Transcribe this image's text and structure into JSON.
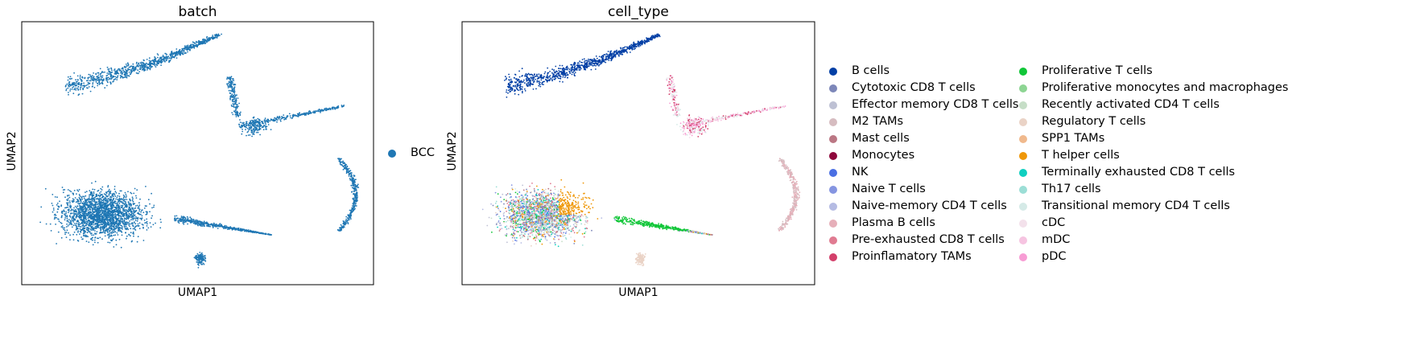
{
  "chart_data": [
    {
      "type": "scatter",
      "title": "batch",
      "xlabel": "UMAP1",
      "ylabel": "UMAP2",
      "legend_placement": "right",
      "series": [
        {
          "name": "BCC",
          "color": "#1f77b4"
        }
      ]
    },
    {
      "type": "scatter",
      "title": "cell_type",
      "xlabel": "UMAP1",
      "ylabel": "UMAP2",
      "legend_placement": "right",
      "legend_columns": 2,
      "series": [
        {
          "name": "B cells",
          "color": "#023fa5"
        },
        {
          "name": "Cytotoxic CD8 T cells",
          "color": "#7d87b9"
        },
        {
          "name": "Effector memory CD8 T cells",
          "color": "#bec1d4"
        },
        {
          "name": "M2 TAMs",
          "color": "#d6bcc0"
        },
        {
          "name": "Mast cells",
          "color": "#bb7784"
        },
        {
          "name": "Monocytes",
          "color": "#8e063b"
        },
        {
          "name": "NK",
          "color": "#4a6fe3"
        },
        {
          "name": "Naive T cells",
          "color": "#8595e1"
        },
        {
          "name": "Naive-memory CD4 T cells",
          "color": "#b5bbe3"
        },
        {
          "name": "Plasma B cells",
          "color": "#e6afb9"
        },
        {
          "name": "Pre-exhausted CD8 T cells",
          "color": "#e07b91"
        },
        {
          "name": "Proinflamatory TAMs",
          "color": "#d33f6a"
        },
        {
          "name": "Proliferative T cells",
          "color": "#11c638"
        },
        {
          "name": "Proliferative monocytes and macrophages",
          "color": "#8dd593"
        },
        {
          "name": "Recently activated CD4 T cells",
          "color": "#c6dec7"
        },
        {
          "name": "Regulatory T cells",
          "color": "#ead3c6"
        },
        {
          "name": "SPP1 TAMs",
          "color": "#f0b98d"
        },
        {
          "name": "T helper cells",
          "color": "#ef9708"
        },
        {
          "name": "Terminally exhausted CD8 T cells",
          "color": "#0fcfc0"
        },
        {
          "name": "Th17 cells",
          "color": "#9cded6"
        },
        {
          "name": "Transitional memory CD4 T cells",
          "color": "#d5eae7"
        },
        {
          "name": "cDC",
          "color": "#f3e1eb"
        },
        {
          "name": "mDC",
          "color": "#f6c4e1"
        },
        {
          "name": "pDC",
          "color": "#f79cd4"
        }
      ]
    }
  ]
}
